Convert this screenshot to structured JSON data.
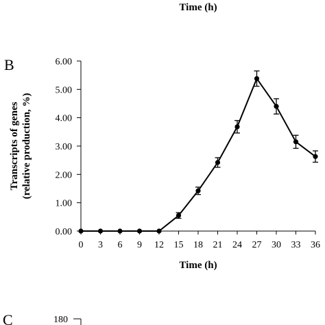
{
  "top_xlabel": "Time (h)",
  "panel_b_letter": "B",
  "panel_c_letter": "C",
  "panel_c_top_tick": "180",
  "chart_data": {
    "type": "line",
    "xlabel": "Time (h)",
    "ylabel_line1": "Transcripts of genes",
    "ylabel_line2": "(relative production, %)",
    "x": [
      0,
      3,
      6,
      9,
      12,
      15,
      18,
      21,
      24,
      27,
      30,
      33,
      36
    ],
    "x_tick_labels": [
      "0",
      "3",
      "6",
      "9",
      "12",
      "15",
      "18",
      "21",
      "24",
      "27",
      "30",
      "33",
      "36"
    ],
    "xlim": [
      0,
      36
    ],
    "ylim": [
      0,
      6
    ],
    "y_ticks": [
      0,
      1,
      2,
      3,
      4,
      5,
      6
    ],
    "y_tick_labels": [
      "0.00",
      "1.00",
      "2.00",
      "3.00",
      "4.00",
      "5.00",
      "6.00"
    ],
    "grid": false,
    "series": [
      {
        "values": [
          0,
          0,
          0,
          0,
          0,
          0.55,
          1.42,
          2.42,
          3.68,
          5.38,
          4.4,
          3.15,
          2.63
        ],
        "errors": [
          0,
          0,
          0,
          0,
          0,
          0.1,
          0.13,
          0.17,
          0.22,
          0.27,
          0.27,
          0.23,
          0.2
        ],
        "color": "#000000"
      }
    ]
  }
}
